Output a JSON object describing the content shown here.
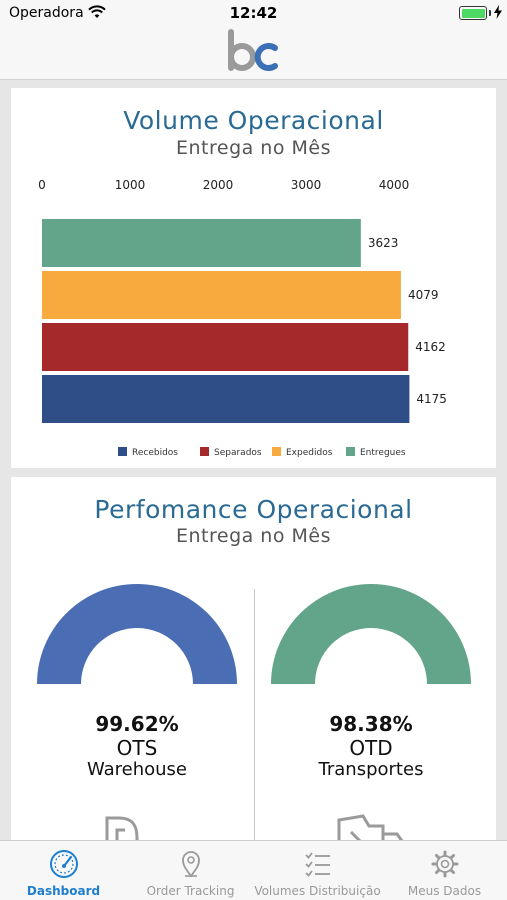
{
  "status_bar": {
    "carrier": "Operadora",
    "time": "12:42"
  },
  "volume_card": {
    "title": "Volume Operacional",
    "subtitle": "Entrega no Mês"
  },
  "chart_data": {
    "type": "bar",
    "orientation": "horizontal",
    "x_ticks": [
      0,
      1000,
      2000,
      3000,
      4000
    ],
    "xlim": [
      0,
      4000
    ],
    "series": [
      {
        "name": "Entregues",
        "value": 3623,
        "color": "#63a58a"
      },
      {
        "name": "Expedidos",
        "value": 4079,
        "color": "#f8aa3e"
      },
      {
        "name": "Separados",
        "value": 4162,
        "color": "#a5282b"
      },
      {
        "name": "Recebidos",
        "value": 4175,
        "color": "#2f4d86"
      }
    ],
    "legend": [
      "Recebidos",
      "Separados",
      "Expedidos",
      "Entregues"
    ],
    "legend_placement": "bottom"
  },
  "performance_card": {
    "title": "Perfomance Operacional",
    "subtitle": "Entrega no Mês",
    "metrics": [
      {
        "value": "99.62%",
        "code": "OTS",
        "label": "Warehouse",
        "color": "#4a6db4",
        "icon": "warehouse-icon"
      },
      {
        "value": "98.38%",
        "code": "OTD",
        "label": "Transportes",
        "color": "#63a58a",
        "icon": "truck-icon"
      }
    ]
  },
  "tab_bar": {
    "tabs": [
      {
        "label": "Dashboard",
        "icon": "speedometer-icon",
        "active": true
      },
      {
        "label": "Order Tracking",
        "icon": "location-pin-icon",
        "active": false
      },
      {
        "label": "Volumes Distribuição",
        "icon": "checklist-icon",
        "active": false
      },
      {
        "label": "Meus Dados",
        "icon": "gear-icon",
        "active": false
      }
    ]
  },
  "colors": {
    "title_blue": "#2a6a93",
    "active_tab": "#1f7fcf",
    "inactive_tab": "#999999"
  }
}
